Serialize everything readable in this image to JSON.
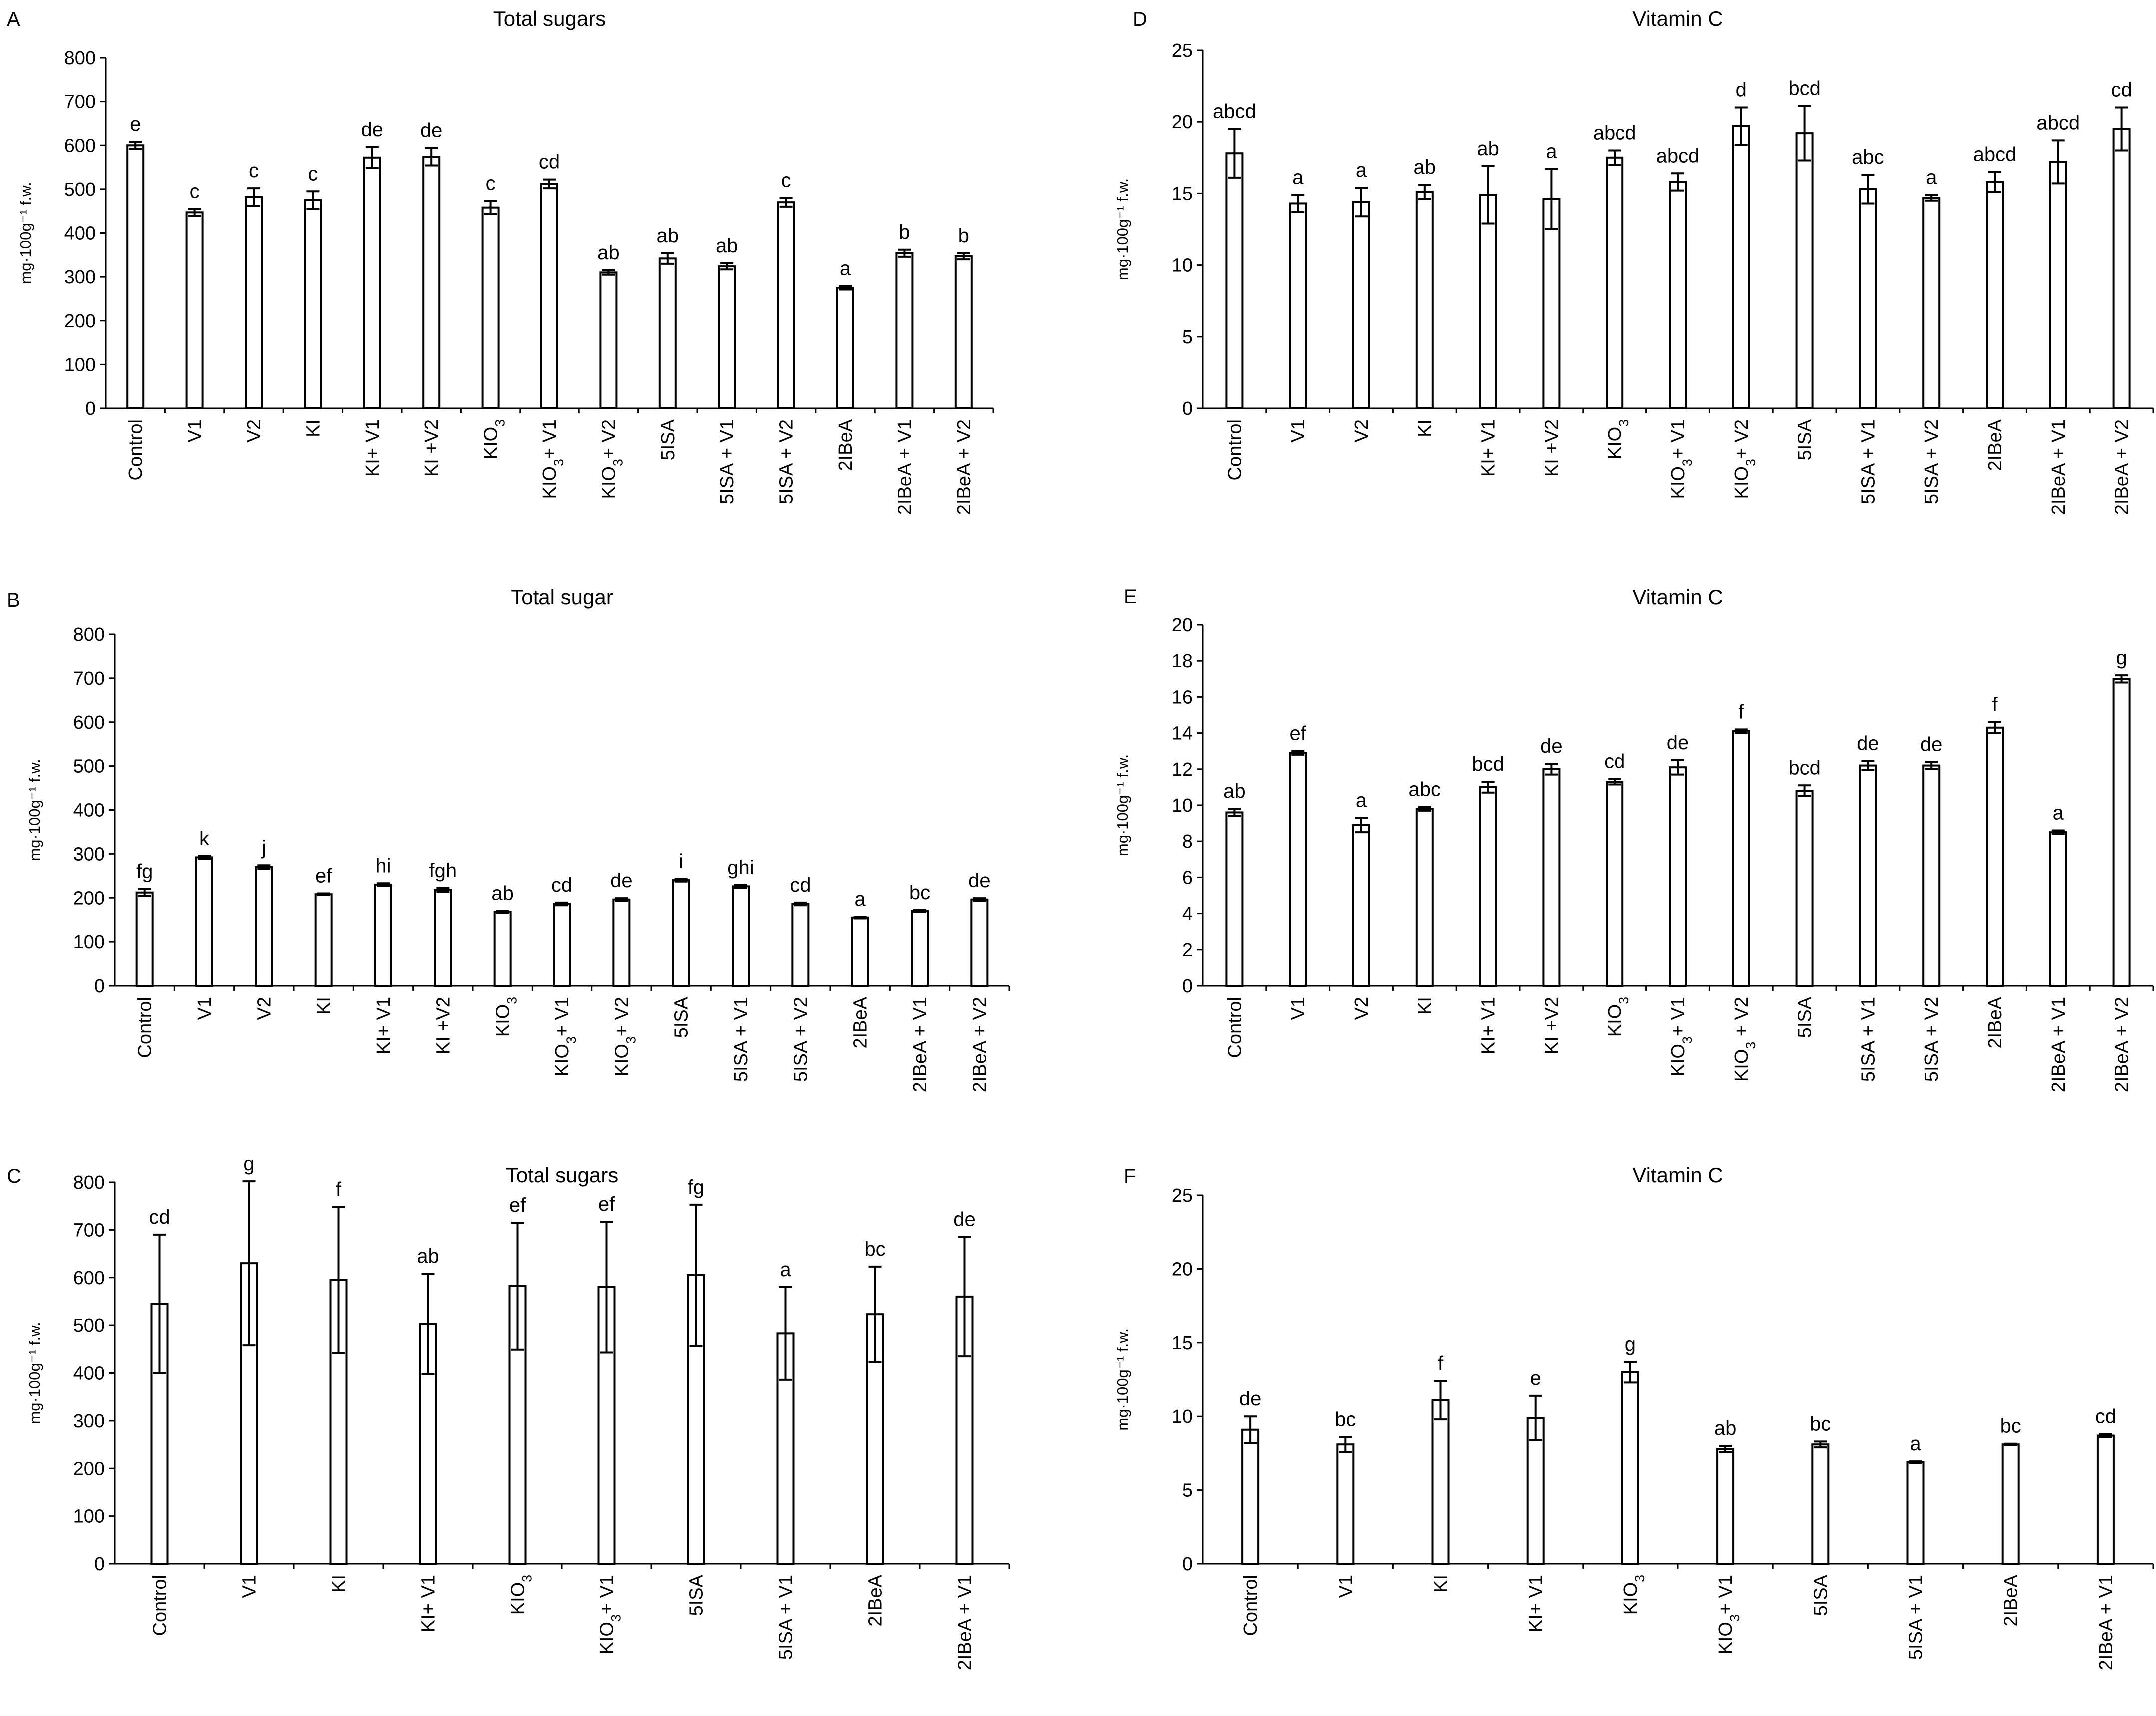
{
  "figure": {
    "panels": [
      {
        "letter": "A",
        "chart_data": {
          "type": "bar",
          "title": "Total sugars",
          "ylabel": "mg·100g⁻¹ f.w.",
          "ylim": [
            0,
            800
          ],
          "ytick_step": 100,
          "categories": [
            "Control",
            "V1",
            "V2",
            "KI",
            "KI+ V1",
            "KI +V2",
            "KIO3",
            "KIO3+ V1",
            "KIO3+ V2",
            "5ISA",
            "5ISA + V1",
            "5ISA + V2",
            "2IBeA",
            "2IBeA + V1",
            "2IBeA + V2"
          ],
          "values": [
            600,
            447,
            482,
            475,
            572,
            574,
            458,
            512,
            310,
            342,
            324,
            470,
            275,
            354,
            347
          ],
          "errors": [
            8,
            8,
            20,
            20,
            24,
            20,
            15,
            10,
            5,
            12,
            7,
            10,
            4,
            8,
            7
          ],
          "labels": [
            "e",
            "c",
            "c",
            "c",
            "de",
            "de",
            "c",
            "cd",
            "ab",
            "ab",
            "ab",
            "c",
            "a",
            "b",
            "b"
          ]
        }
      },
      {
        "letter": "B",
        "chart_data": {
          "type": "bar",
          "title": "Total sugar",
          "ylabel": "mg·100g⁻¹ f.w.",
          "ylim": [
            0,
            800
          ],
          "ytick_step": 100,
          "categories": [
            "Control",
            "V1",
            "V2",
            "KI",
            "KI+ V1",
            "KI +V2",
            "KIO3",
            "KIO3+ V1",
            "KIO3+ V2",
            "5ISA",
            "5ISA + V1",
            "5ISA + V2",
            "2IBeA",
            "2IBeA + V1",
            "2IBeA + V2"
          ],
          "values": [
            212,
            292,
            270,
            208,
            230,
            218,
            168,
            186,
            196,
            240,
            226,
            186,
            155,
            170,
            196
          ],
          "errors": [
            8,
            3,
            4,
            2,
            3,
            4,
            2,
            3,
            3,
            3,
            3,
            3,
            2,
            2,
            3
          ],
          "labels": [
            "fg",
            "k",
            "j",
            "ef",
            "hi",
            "fgh",
            "ab",
            "cd",
            "de",
            "i",
            "ghi",
            "cd",
            "a",
            "bc",
            "de"
          ]
        }
      },
      {
        "letter": "C",
        "chart_data": {
          "type": "bar",
          "title": "Total sugars",
          "ylabel": "mg·100g⁻¹ f.w.",
          "ylim": [
            0,
            800
          ],
          "ytick_step": 100,
          "categories": [
            "Control",
            "V1",
            "KI",
            "KI+ V1",
            "KIO3",
            "KIO3+ V1",
            "5ISA",
            "5ISA + V1",
            "2IBeA",
            "2IBeA + V1"
          ],
          "values": [
            545,
            630,
            595,
            503,
            582,
            580,
            605,
            483,
            523,
            560
          ],
          "errors": [
            145,
            172,
            153,
            105,
            133,
            137,
            148,
            97,
            100,
            125
          ],
          "labels": [
            "cd",
            "g",
            "f",
            "ab",
            "ef",
            "ef",
            "fg",
            "a",
            "bc",
            "de"
          ]
        }
      },
      {
        "letter": "D",
        "chart_data": {
          "type": "bar",
          "title": "Vitamin C",
          "ylabel": "mg·100g⁻¹ f.w.",
          "ylim": [
            0,
            25
          ],
          "ytick_step": 5,
          "categories": [
            "Control",
            "V1",
            "V2",
            "KI",
            "KI+ V1",
            "KI +V2",
            "KIO3",
            "KIO3+ V1",
            "KIO3+ V2",
            "5ISA",
            "5ISA + V1",
            "5ISA + V2",
            "2IBeA",
            "2IBeA + V1",
            "2IBeA + V2"
          ],
          "values": [
            17.8,
            14.3,
            14.4,
            15.1,
            14.9,
            14.6,
            17.5,
            15.8,
            19.7,
            19.2,
            15.3,
            14.7,
            15.8,
            17.2,
            19.5
          ],
          "errors": [
            1.7,
            0.6,
            1.0,
            0.5,
            2.0,
            2.1,
            0.5,
            0.6,
            1.3,
            1.9,
            1.0,
            0.2,
            0.7,
            1.5,
            1.5
          ],
          "labels": [
            "abcd",
            "a",
            "a",
            "ab",
            "ab",
            "a",
            "abcd",
            "abcd",
            "d",
            "bcd",
            "abc",
            "a",
            "abcd",
            "abcd",
            "cd"
          ]
        }
      },
      {
        "letter": "E",
        "chart_data": {
          "type": "bar",
          "title": "Vitamin C",
          "ylabel": "mg·100g⁻¹ f.w.",
          "ylim": [
            0,
            20
          ],
          "ytick_step": 2,
          "categories": [
            "Control",
            "V1",
            "V2",
            "KI",
            "KI+ V1",
            "KI +V2",
            "KIO3",
            "KIO3+ V1",
            "KIO3 + V2",
            "5ISA",
            "5ISA + V1",
            "5ISA + V2",
            "2IBeA",
            "2IBeA + V1",
            "2IBeA + V2"
          ],
          "values": [
            9.6,
            12.9,
            8.9,
            9.8,
            11.0,
            12.0,
            11.3,
            12.1,
            14.1,
            10.8,
            12.2,
            12.2,
            14.3,
            8.5,
            17.0
          ],
          "errors": [
            0.2,
            0.1,
            0.4,
            0.1,
            0.3,
            0.3,
            0.15,
            0.4,
            0.1,
            0.3,
            0.25,
            0.2,
            0.3,
            0.1,
            0.2
          ],
          "labels": [
            "ab",
            "ef",
            "a",
            "abc",
            "bcd",
            "de",
            "cd",
            "de",
            "f",
            "bcd",
            "de",
            "de",
            "f",
            "a",
            "g"
          ]
        }
      },
      {
        "letter": "F",
        "chart_data": {
          "type": "bar",
          "title": "Vitamin C",
          "ylabel": "mg·100g⁻¹ f.w.",
          "ylim": [
            0,
            25
          ],
          "ytick_step": 5,
          "categories": [
            "Control",
            "V1",
            "KI",
            "KI+ V1",
            "KIO3",
            "KIO3+ V1",
            "5ISA",
            "5ISA + V1",
            "2IBeA",
            "2IBeA + V1"
          ],
          "values": [
            9.1,
            8.1,
            11.1,
            9.9,
            13.0,
            7.8,
            8.1,
            6.9,
            8.1,
            8.7
          ],
          "errors": [
            0.9,
            0.5,
            1.3,
            1.5,
            0.7,
            0.2,
            0.2,
            0.05,
            0.05,
            0.1
          ],
          "labels": [
            "de",
            "bc",
            "f",
            "e",
            "g",
            "ab",
            "bc",
            "a",
            "bc",
            "cd"
          ]
        }
      }
    ]
  }
}
